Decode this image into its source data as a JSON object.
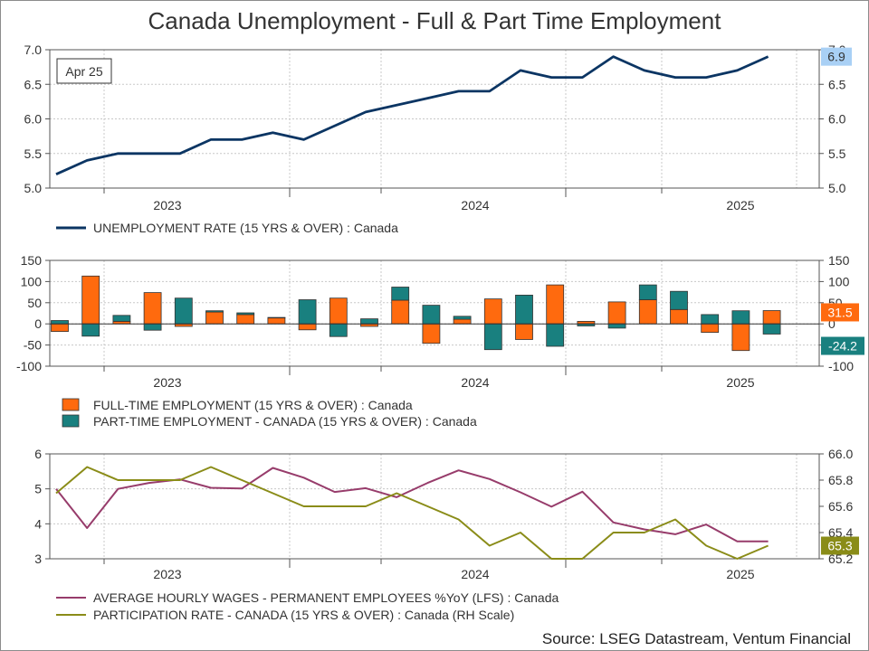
{
  "title": "Canada Unemployment - Full & Part Time Employment",
  "source": "Source: LSEG Datastream, Ventum Financial",
  "colors": {
    "unemployment": "#0b3563",
    "fulltime": "#ff6a0e",
    "parttime": "#19807f",
    "wages": "#973c6b",
    "participation": "#8a8c18",
    "grid": "#c8c8c8",
    "label_unemp_bg": "#a9d0f5"
  },
  "chart_data": [
    {
      "type": "line",
      "panel": "top",
      "annotation": "Apr 25",
      "x_tick_labels": [
        "2023",
        "2024",
        "2025"
      ],
      "y_ticks": [
        "5.0",
        "5.5",
        "6.0",
        "6.5",
        "7.0"
      ],
      "ylim": [
        5.0,
        7.0
      ],
      "last_value_label": "6.9",
      "series": [
        {
          "name": "UNEMPLOYMENT RATE (15 YRS & OVER) : Canada",
          "values": [
            5.2,
            5.4,
            5.5,
            5.5,
            5.5,
            5.7,
            5.7,
            5.8,
            5.7,
            5.9,
            6.1,
            6.2,
            6.3,
            6.4,
            6.4,
            6.7,
            6.6,
            6.6,
            6.9,
            6.7,
            6.6,
            6.6,
            6.7,
            6.9
          ]
        }
      ]
    },
    {
      "type": "bar",
      "panel": "middle",
      "x_tick_labels": [
        "2023",
        "2024",
        "2025"
      ],
      "y_ticks": [
        "-100",
        "-50",
        "0",
        "50",
        "100",
        "150"
      ],
      "ylim": [
        -100,
        150
      ],
      "series": [
        {
          "name": "FULL-TIME EMPLOYMENT (15 YRS & OVER) : Canada",
          "last_value_label": "31.5",
          "values": [
            -18,
            113,
            6,
            74,
            -6,
            28,
            22,
            15,
            -14,
            61,
            -6,
            56,
            -46,
            11,
            59,
            -37,
            92,
            6,
            52,
            57,
            34,
            -20,
            -63,
            31.5
          ]
        },
        {
          "name": "PART-TIME EMPLOYMENT - CANADA (15 YRS & OVER) : Canada",
          "last_value_label": "-24.2",
          "values": [
            8,
            -29,
            14,
            -15,
            61,
            3,
            4,
            0,
            57,
            -30,
            12,
            31,
            44,
            7,
            -61,
            68,
            -53,
            -5,
            -10,
            35,
            43,
            22,
            31,
            -24.2
          ]
        }
      ]
    },
    {
      "type": "line",
      "panel": "bottom",
      "x_tick_labels": [
        "2023",
        "2024",
        "2025"
      ],
      "y_ticks_left": [
        "3",
        "4",
        "5",
        "6"
      ],
      "ylim_left": [
        3,
        6
      ],
      "y_ticks_right": [
        "65.2",
        "65.4",
        "65.6",
        "65.8",
        "66.0"
      ],
      "ylim_right": [
        65.2,
        66.0
      ],
      "last_value_label": "65.3",
      "series": [
        {
          "name": "AVERAGE HOURLY WAGES - PERMANENT EMPLOYEES %YoY (LFS) : Canada",
          "axis": "left",
          "values": [
            5.0,
            3.88,
            5.0,
            5.17,
            5.27,
            5.03,
            5.01,
            5.6,
            5.32,
            4.91,
            5.02,
            4.76,
            5.17,
            5.53,
            5.28,
            4.9,
            4.49,
            4.92,
            4.04,
            3.84,
            3.7,
            3.98,
            3.5,
            3.5
          ]
        },
        {
          "name": "PARTICIPATION RATE - CANADA (15 YRS & OVER) : Canada (RH Scale)",
          "axis": "right",
          "values": [
            65.7,
            65.9,
            65.8,
            65.8,
            65.8,
            65.9,
            65.8,
            65.7,
            65.6,
            65.6,
            65.6,
            65.7,
            65.6,
            65.5,
            65.3,
            65.4,
            65.2,
            65.2,
            65.4,
            65.4,
            65.5,
            65.3,
            65.2,
            65.3
          ]
        }
      ]
    }
  ]
}
